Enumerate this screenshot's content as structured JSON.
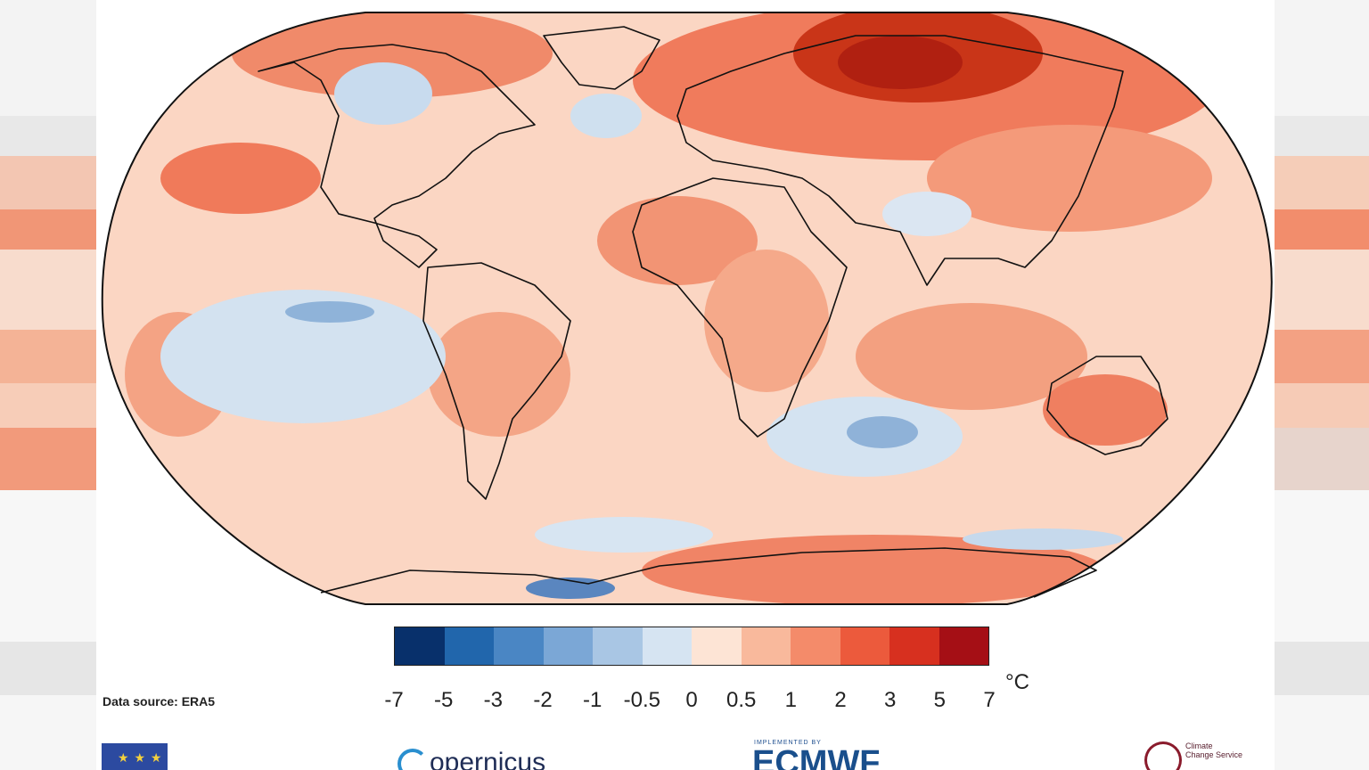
{
  "map": {
    "kind": "Surface air temperature anomaly map",
    "projection": "robinson-style world map",
    "dominant_colors": [
      "#fcdcc8",
      "#f7a98a",
      "#f0745a",
      "#d9432b",
      "#b32315",
      "#cfe0ef",
      "#7aa3cf"
    ]
  },
  "colorbar": {
    "colors": [
      "#08306b",
      "#2166ac",
      "#4a86c4",
      "#7ba7d6",
      "#a9c6e4",
      "#d6e4f2",
      "#fde4d5",
      "#f9b99c",
      "#f48b6a",
      "#ec5a3c",
      "#d7301f",
      "#a50f15"
    ],
    "tick_labels": [
      "-7",
      "-5",
      "-3",
      "-2",
      "-1",
      "-0.5",
      "0",
      "0.5",
      "1",
      "2",
      "3",
      "5",
      "7"
    ],
    "unit": "°C"
  },
  "source_text": "Data source: ERA5",
  "logos": {
    "eu_name": "European Commission flag",
    "copernicus_text": "opernicus",
    "ecmwf_small": "IMPLEMENTED BY",
    "ecmwf_text": "ECMWF",
    "c3s_line1": "Climate",
    "c3s_line2": "Change Service"
  },
  "side_colors": {
    "left": [
      "#ebebeb",
      "#f6d6c6",
      "#f29b7c",
      "#f6c5ae",
      "#f08a6a",
      "#f7d2c0",
      "#e9e9e9"
    ],
    "right": [
      "#eaeaea",
      "#f6cdb8",
      "#f28c6c",
      "#f8d6c5",
      "#f3a183",
      "#efe1da",
      "#e4e4e4"
    ]
  }
}
